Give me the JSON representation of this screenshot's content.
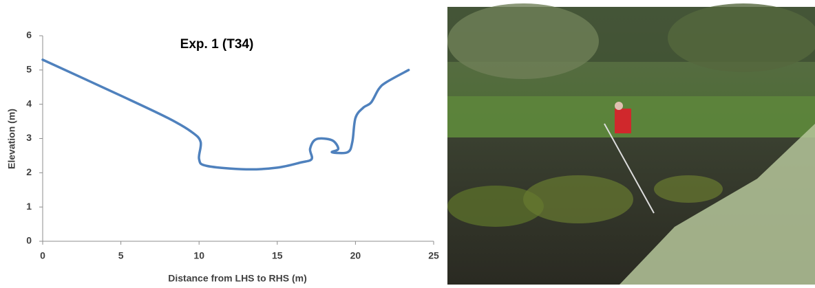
{
  "chart_data": {
    "type": "line",
    "title": "Exp. 1 (T34)",
    "xlabel": "Distance from LHS to RHS (m)",
    "ylabel": "Elevation (m)",
    "x": [
      0,
      5,
      8,
      9.5,
      10.1,
      10,
      10.5,
      13,
      15,
      16.5,
      17.2,
      17.1,
      17.5,
      18.5,
      18.9,
      18.5,
      19.5,
      19.8,
      20,
      20.5,
      21,
      21.5,
      22,
      23.4
    ],
    "values": [
      5.3,
      4.25,
      3.6,
      3.2,
      2.9,
      2.4,
      2.2,
      2.1,
      2.15,
      2.3,
      2.4,
      2.7,
      2.98,
      2.95,
      2.7,
      2.6,
      2.6,
      2.9,
      3.6,
      3.9,
      4.05,
      4.45,
      4.65,
      5.0
    ],
    "color": "#4f81bd",
    "xlim": [
      0,
      25
    ],
    "xticks": [
      0,
      5,
      10,
      15,
      20,
      25
    ],
    "ylim": [
      0,
      6
    ],
    "yticks": [
      0,
      1,
      2,
      3,
      4,
      5,
      6
    ],
    "grid": false
  }
}
